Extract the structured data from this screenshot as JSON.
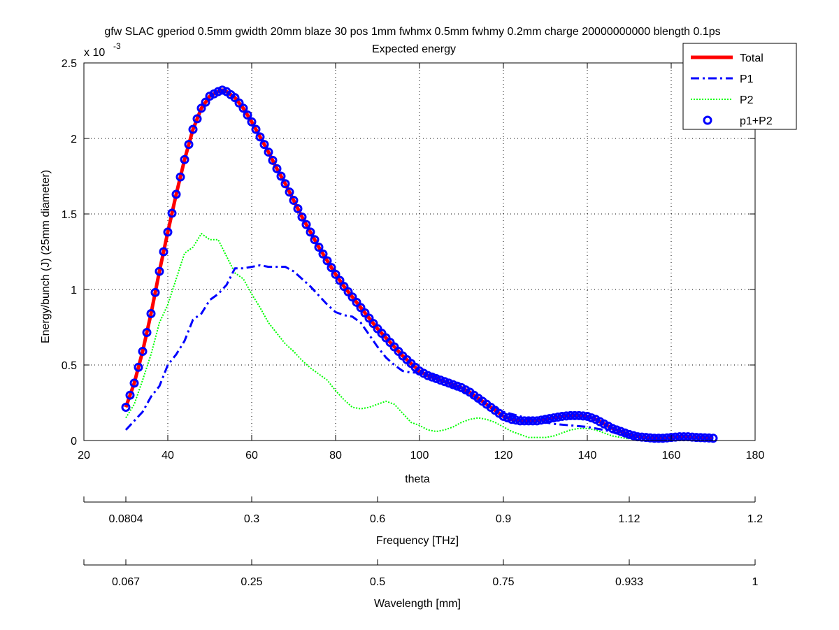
{
  "chart_data": {
    "type": "line",
    "title": "gfw SLAC gperiod 0.5mm gwidth 20mm blaze 30 pos 1mm fwhmx 0.5mm fwhmy 0.2mm charge 20000000000 blength 0.1ps",
    "subtitle": "Expected energy",
    "xlabel": "theta",
    "ylabel": "Energy/bunch (J) (25mm diameter)",
    "y_exponent_label": "x 10",
    "y_exponent_power": "-3",
    "xlim": [
      20,
      180
    ],
    "ylim": [
      0,
      2.5
    ],
    "grid": true,
    "legend_position": "top-right",
    "x_ticks": [
      "20",
      "40",
      "60",
      "80",
      "100",
      "120",
      "140",
      "160",
      "180"
    ],
    "y_ticks": [
      "0",
      "0.5",
      "1",
      "1.5",
      "2",
      "2.5"
    ],
    "secondary_axes": [
      {
        "label": "Frequency [THz]",
        "ticks": [
          {
            "theta": 20,
            "text": ""
          },
          {
            "theta": 30,
            "text": "0.0804"
          },
          {
            "theta": 60,
            "text": "0.3"
          },
          {
            "theta": 90,
            "text": "0.6"
          },
          {
            "theta": 120,
            "text": "0.9"
          },
          {
            "theta": 150,
            "text": "1.12"
          },
          {
            "theta": 180,
            "text": "1.2"
          }
        ]
      },
      {
        "label": "Wavelength [mm]",
        "ticks": [
          {
            "theta": 20,
            "text": ""
          },
          {
            "theta": 30,
            "text": "0.067"
          },
          {
            "theta": 60,
            "text": "0.25"
          },
          {
            "theta": 90,
            "text": "0.5"
          },
          {
            "theta": 120,
            "text": "0.75"
          },
          {
            "theta": 150,
            "text": "0.933"
          },
          {
            "theta": 180,
            "text": "1"
          }
        ]
      }
    ],
    "series": [
      {
        "name": "Total",
        "color": "#ff0000",
        "style": "solid",
        "x": [
          30,
          32,
          34,
          36,
          38,
          40,
          42,
          44,
          46,
          48,
          50,
          52,
          53,
          54,
          56,
          58,
          60,
          62,
          64,
          66,
          68,
          70,
          72,
          74,
          76,
          78,
          80,
          82,
          84,
          86,
          88,
          90,
          92,
          94,
          96,
          98,
          100,
          102,
          104,
          106,
          108,
          110,
          112,
          114,
          116,
          118,
          120,
          122,
          124,
          126,
          128,
          130,
          132,
          134,
          136,
          138,
          140,
          142,
          144,
          146,
          148,
          150,
          152,
          154,
          156,
          158,
          160,
          162,
          164,
          166,
          168,
          170
        ],
        "y": [
          0.22,
          0.38,
          0.59,
          0.84,
          1.12,
          1.38,
          1.63,
          1.86,
          2.06,
          2.2,
          2.28,
          2.31,
          2.32,
          2.31,
          2.27,
          2.2,
          2.11,
          2.01,
          1.91,
          1.8,
          1.7,
          1.59,
          1.48,
          1.38,
          1.28,
          1.19,
          1.1,
          1.02,
          0.95,
          0.88,
          0.81,
          0.74,
          0.68,
          0.62,
          0.56,
          0.51,
          0.46,
          0.43,
          0.41,
          0.39,
          0.37,
          0.35,
          0.32,
          0.28,
          0.24,
          0.2,
          0.16,
          0.14,
          0.13,
          0.13,
          0.13,
          0.14,
          0.15,
          0.16,
          0.165,
          0.165,
          0.16,
          0.14,
          0.11,
          0.08,
          0.06,
          0.04,
          0.025,
          0.02,
          0.015,
          0.015,
          0.02,
          0.025,
          0.025,
          0.02,
          0.018,
          0.015
        ]
      },
      {
        "name": "P1",
        "color": "#0000ff",
        "style": "dashdot",
        "x": [
          30,
          32,
          34,
          36,
          38,
          40,
          42,
          44,
          46,
          48,
          50,
          52,
          54,
          56,
          58,
          60,
          62,
          64,
          66,
          68,
          70,
          72,
          74,
          76,
          78,
          80,
          82,
          84,
          86,
          88,
          90,
          92,
          94,
          96,
          98,
          100,
          102,
          104,
          106,
          108,
          110,
          112,
          114,
          116,
          118,
          120,
          124,
          128,
          132,
          136,
          140,
          144,
          148,
          152
        ],
        "y": [
          0.07,
          0.13,
          0.19,
          0.29,
          0.36,
          0.5,
          0.57,
          0.66,
          0.8,
          0.84,
          0.93,
          0.97,
          1.03,
          1.14,
          1.14,
          1.15,
          1.16,
          1.15,
          1.15,
          1.15,
          1.12,
          1.07,
          1.02,
          0.96,
          0.9,
          0.85,
          0.83,
          0.82,
          0.78,
          0.7,
          0.62,
          0.55,
          0.5,
          0.46,
          0.45,
          0.45,
          0.44,
          0.42,
          0.39,
          0.36,
          0.33,
          0.3,
          0.27,
          0.24,
          0.21,
          0.19,
          0.16,
          0.13,
          0.11,
          0.1,
          0.09,
          0.07,
          0.04,
          0.02
        ]
      },
      {
        "name": "P2",
        "color": "#00ff00",
        "style": "dotted",
        "x": [
          30,
          32,
          34,
          36,
          38,
          40,
          42,
          44,
          46,
          48,
          50,
          52,
          54,
          56,
          58,
          60,
          62,
          64,
          66,
          68,
          70,
          72,
          74,
          76,
          78,
          80,
          82,
          84,
          86,
          88,
          90,
          92,
          94,
          96,
          98,
          100,
          102,
          104,
          106,
          108,
          110,
          112,
          114,
          116,
          118,
          120,
          122,
          124,
          126,
          128,
          130,
          132,
          134,
          136,
          138,
          140,
          142,
          144,
          146,
          148,
          150
        ],
        "y": [
          0.15,
          0.24,
          0.4,
          0.57,
          0.78,
          0.9,
          1.07,
          1.24,
          1.28,
          1.37,
          1.33,
          1.33,
          1.22,
          1.11,
          1.07,
          0.97,
          0.88,
          0.78,
          0.71,
          0.64,
          0.59,
          0.53,
          0.48,
          0.44,
          0.4,
          0.33,
          0.27,
          0.22,
          0.21,
          0.22,
          0.24,
          0.26,
          0.24,
          0.18,
          0.12,
          0.1,
          0.07,
          0.06,
          0.07,
          0.09,
          0.12,
          0.14,
          0.15,
          0.14,
          0.12,
          0.09,
          0.06,
          0.04,
          0.02,
          0.02,
          0.02,
          0.03,
          0.05,
          0.07,
          0.08,
          0.08,
          0.07,
          0.05,
          0.03,
          0.02,
          0.01
        ]
      },
      {
        "name": "p1+P2",
        "color": "#0000ff",
        "style": "circles"
      }
    ]
  }
}
